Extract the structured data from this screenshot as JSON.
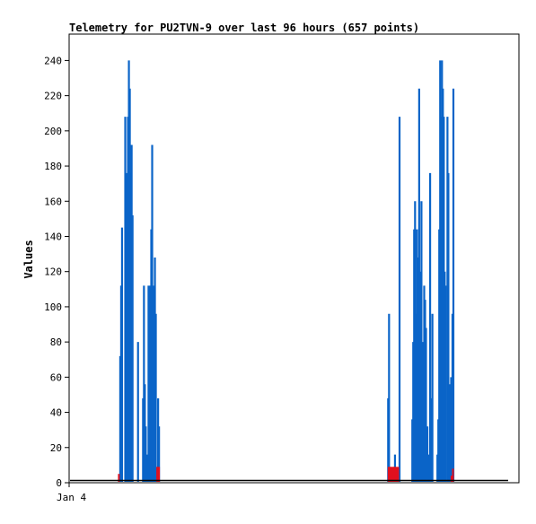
{
  "chart_data": {
    "type": "bar",
    "title": "Telemetry for PU2TVN-9 over last 96 hours (657 points)",
    "xlabel": "",
    "ylabel": "Values",
    "x_tick_labels": [
      "Jan 4"
    ],
    "y_ticks": [
      0,
      20,
      40,
      60,
      80,
      100,
      120,
      140,
      160,
      180,
      200,
      220,
      240
    ],
    "ylim": [
      0,
      255
    ],
    "xlim": [
      0,
      96
    ],
    "grid": false,
    "legend": "none",
    "series": [
      {
        "color": "#0a64c8",
        "points": [
          [
            11.0,
            72
          ],
          [
            11.2,
            112
          ],
          [
            11.4,
            145
          ],
          [
            12.1,
            208
          ],
          [
            12.3,
            64
          ],
          [
            12.5,
            176
          ],
          [
            12.7,
            208
          ],
          [
            12.9,
            240
          ],
          [
            13.1,
            224
          ],
          [
            13.3,
            176
          ],
          [
            13.5,
            192
          ],
          [
            13.7,
            152
          ],
          [
            14.9,
            80
          ],
          [
            16.0,
            48
          ],
          [
            16.2,
            112
          ],
          [
            16.4,
            56
          ],
          [
            16.6,
            32
          ],
          [
            16.8,
            16
          ],
          [
            17.2,
            112
          ],
          [
            17.4,
            96
          ],
          [
            17.6,
            112
          ],
          [
            17.8,
            144
          ],
          [
            18.0,
            192
          ],
          [
            18.2,
            112
          ],
          [
            18.4,
            80
          ],
          [
            18.6,
            128
          ],
          [
            18.8,
            96
          ],
          [
            19.3,
            48
          ],
          [
            19.5,
            32
          ],
          [
            69.7,
            48
          ],
          [
            69.9,
            96
          ],
          [
            71.2,
            16
          ],
          [
            72.2,
            208
          ],
          [
            75.0,
            36
          ],
          [
            75.2,
            80
          ],
          [
            75.4,
            144
          ],
          [
            75.6,
            160
          ],
          [
            75.8,
            96
          ],
          [
            76.0,
            144
          ],
          [
            76.3,
            128
          ],
          [
            76.5,
            224
          ],
          [
            76.7,
            120
          ],
          [
            77.0,
            160
          ],
          [
            77.2,
            36
          ],
          [
            77.4,
            80
          ],
          [
            77.6,
            112
          ],
          [
            77.8,
            104
          ],
          [
            78.0,
            88
          ],
          [
            78.3,
            32
          ],
          [
            78.6,
            16
          ],
          [
            78.9,
            176
          ],
          [
            79.1,
            48
          ],
          [
            79.4,
            96
          ],
          [
            80.5,
            16
          ],
          [
            80.7,
            36
          ],
          [
            80.9,
            144
          ],
          [
            81.1,
            240
          ],
          [
            81.3,
            208
          ],
          [
            81.5,
            240
          ],
          [
            81.7,
            224
          ],
          [
            81.9,
            208
          ],
          [
            82.1,
            120
          ],
          [
            82.3,
            112
          ],
          [
            82.7,
            208
          ],
          [
            82.9,
            176
          ],
          [
            83.1,
            56
          ],
          [
            83.5,
            60
          ],
          [
            83.8,
            96
          ],
          [
            84.0,
            224
          ]
        ]
      },
      {
        "color": "#e0101e",
        "points": [
          [
            10.7,
            5
          ],
          [
            19.1,
            9
          ],
          [
            19.3,
            9
          ],
          [
            19.5,
            9
          ],
          [
            69.8,
            9
          ],
          [
            70.0,
            9
          ],
          [
            70.3,
            9
          ],
          [
            70.5,
            9
          ],
          [
            70.8,
            9
          ],
          [
            71.0,
            9
          ],
          [
            71.3,
            9
          ],
          [
            71.6,
            9
          ],
          [
            71.9,
            9
          ],
          [
            83.6,
            4
          ],
          [
            83.9,
            8
          ]
        ]
      },
      {
        "color": "#000000",
        "points": [
          [
            0,
            1
          ],
          [
            96,
            1
          ]
        ]
      }
    ]
  }
}
